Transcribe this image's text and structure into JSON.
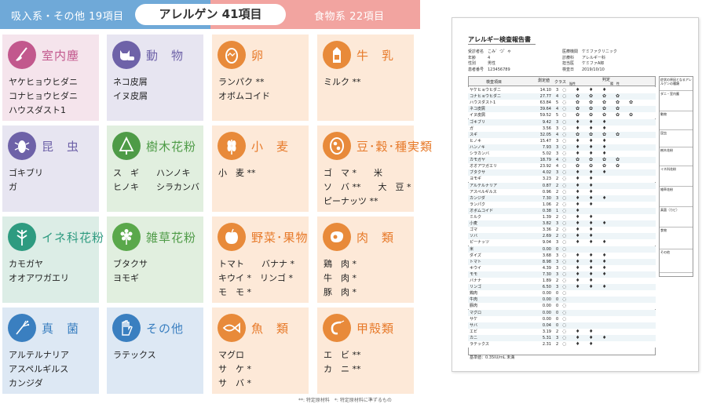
{
  "header": {
    "left": "吸入系・その他 19項目",
    "center": "アレルゲン 41項目",
    "right": "食物系 22項目"
  },
  "colors": {
    "header_left": "#6fa9d8",
    "header_right": "#f2a4a0",
    "inhalant": "#e7e5f1",
    "food": "#fde9d8"
  },
  "cards": [
    {
      "title": "室内塵",
      "icon": "broom-icon",
      "items": [
        "ヤケヒョウヒダニ",
        "コナヒョウヒダニ",
        "ハウスダスト1"
      ]
    },
    {
      "title": "動　物",
      "icon": "cat-icon",
      "items": [
        "ネコ皮屑",
        "イヌ皮屑"
      ]
    },
    {
      "title": "卵",
      "icon": "egg-icon",
      "items": [
        "ランパク **",
        "オボムコイド"
      ]
    },
    {
      "title": "牛　乳",
      "icon": "milk-carton-icon",
      "items": [
        "ミルク **"
      ]
    },
    {
      "title": "昆　虫",
      "icon": "cockroach-icon",
      "items": [
        "ゴキブリ",
        "ガ"
      ]
    },
    {
      "title": "樹木花粉",
      "icon": "tree-icon",
      "items": [
        "ス　ギ　　ハンノキ",
        "ヒノキ　　シラカンバ"
      ]
    },
    {
      "title": "小　麦",
      "icon": "wheat-icon",
      "items": [
        "小　麦 **"
      ]
    },
    {
      "title": "豆･穀･種実類",
      "icon": "beans-icon",
      "items": [
        "ゴ　マ *　　米",
        "ソ　バ **　　大　豆 *",
        "ピーナッツ **"
      ]
    },
    {
      "title": "イネ科花粉",
      "icon": "grass-icon",
      "items": [
        "カモガヤ",
        "オオアワガエリ"
      ]
    },
    {
      "title": "雑草花粉",
      "icon": "flower-icon",
      "items": [
        "ブタクサ",
        "ヨモギ"
      ]
    },
    {
      "title": "野菜･果物",
      "icon": "apple-icon",
      "items": [
        "トマト　　バナナ *",
        "キウイ *　リンゴ *",
        "モ　モ *"
      ]
    },
    {
      "title": "肉　類",
      "icon": "meat-icon",
      "items": [
        "鶏　肉 *",
        "牛　肉 *",
        "豚　肉 *"
      ]
    },
    {
      "title": "真　菌",
      "icon": "mold-icon",
      "items": [
        "アルテルナリア",
        "アスペルギルス",
        "カンジダ"
      ]
    },
    {
      "title": "その他",
      "icon": "glove-icon",
      "items": [
        "ラテックス"
      ]
    },
    {
      "title": "魚　類",
      "icon": "fish-icon",
      "items": [
        "マグロ",
        "サ　ケ *",
        "サ　バ *"
      ]
    },
    {
      "title": "甲殻類",
      "icon": "shrimp-icon",
      "items": [
        "エ　ビ **",
        "カ　ニ **"
      ]
    }
  ],
  "footnote": "**: 特定原材料　*: 特定原材料に準ずるもの",
  "report": {
    "title": "アレルギー検査報告書",
    "info_left": [
      "受診者名　こみ゛つ゜ゃ",
      "年齢　　　4",
      "性別　　　男性",
      "患者番号　123456789"
    ],
    "info_right": [
      "医療機関　ケミファクリニック",
      "診療科　　アレルギー科",
      "担当医　　ケミファA郎",
      "検査日　　2019/10/10"
    ],
    "header_item": "検査項目",
    "header_value": "測定値",
    "header_class": "クラス",
    "header_judge": "判定",
    "header_neg": "陰性",
    "header_pos": "陽　性",
    "rows": [
      [
        "ヤケヒョウヒダニ",
        "14.10",
        "3"
      ],
      [
        "コナヒョウヒダニ",
        "27.77",
        "4"
      ],
      [
        "ハウスダスト1",
        "63.84",
        "5"
      ],
      [
        "ネコ皮屑",
        "39.64",
        "4"
      ],
      [
        "イヌ皮屑",
        "59.52",
        "5"
      ],
      [
        "ゴキブリ",
        "9.42",
        "3"
      ],
      [
        "ガ",
        "3.56",
        "3"
      ],
      [
        "スギ",
        "32.05",
        "4"
      ],
      [
        "ヒノキ",
        "15.47",
        "3"
      ],
      [
        "ハンノキ",
        "7.93",
        "3"
      ],
      [
        "シラカンバ",
        "5.02",
        "3"
      ],
      [
        "カモガヤ",
        "18.79",
        "4"
      ],
      [
        "オオアワガエリ",
        "23.92",
        "4"
      ],
      [
        "ブタクサ",
        "4.02",
        "3"
      ],
      [
        "ヨモギ",
        "3.23",
        "2"
      ],
      [
        "アルテルナリア",
        "0.87",
        "2"
      ],
      [
        "アスペルギルス",
        "0.96",
        "2"
      ],
      [
        "カンジダ",
        "7.30",
        "3"
      ],
      [
        "ランパク",
        "1.06",
        "2"
      ],
      [
        "オボムコイド",
        "0.38",
        "1"
      ],
      [
        "ミルク",
        "1.39",
        "2"
      ],
      [
        "小麦",
        "3.82",
        "3"
      ],
      [
        "ゴマ",
        "3.36",
        "2"
      ],
      [
        "ソバ",
        "2.69",
        "2"
      ],
      [
        "ピーナッツ",
        "9.04",
        "3"
      ],
      [
        "米",
        "0.00",
        "0"
      ],
      [
        "ダイズ",
        "3.68",
        "3"
      ],
      [
        "トマト",
        "8.98",
        "3"
      ],
      [
        "キウイ",
        "4.39",
        "3"
      ],
      [
        "モモ",
        "7.30",
        "3"
      ],
      [
        "バナナ",
        "1.89",
        "2"
      ],
      [
        "リンゴ",
        "6.50",
        "3"
      ],
      [
        "鶏肉",
        "0.00",
        "0"
      ],
      [
        "牛肉",
        "0.00",
        "0"
      ],
      [
        "豚肉",
        "0.00",
        "0"
      ],
      [
        "マグロ",
        "0.00",
        "0"
      ],
      [
        "サケ",
        "0.00",
        "0"
      ],
      [
        "サバ",
        "0.04",
        "0"
      ],
      [
        "エビ",
        "3.19",
        "2"
      ],
      [
        "カニ",
        "5.31",
        "3"
      ],
      [
        "ラテックス",
        "2.31",
        "2"
      ]
    ],
    "side_boxes": [
      "症状の原因となるアレルゲンの種類",
      "ダニ・室内塵",
      "動物",
      "昆虫",
      "樹木花粉",
      "イネ科花粉",
      "雑草花粉",
      "真菌（カビ）",
      "食物",
      "その他"
    ],
    "footer": "基準値：0.35IU/mL 未満"
  }
}
